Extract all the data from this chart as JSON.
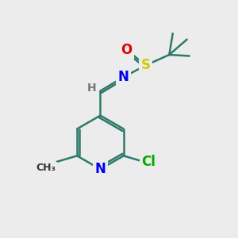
{
  "bg_color": "#ececec",
  "bond_color": "#2d7a6a",
  "bond_width": 1.8,
  "atom_colors": {
    "N": "#0000ee",
    "O": "#dd0000",
    "S": "#cccc00",
    "Cl": "#00aa00",
    "C": "#333333",
    "H": "#777777"
  },
  "font_size_atom": 12,
  "font_size_small": 10
}
